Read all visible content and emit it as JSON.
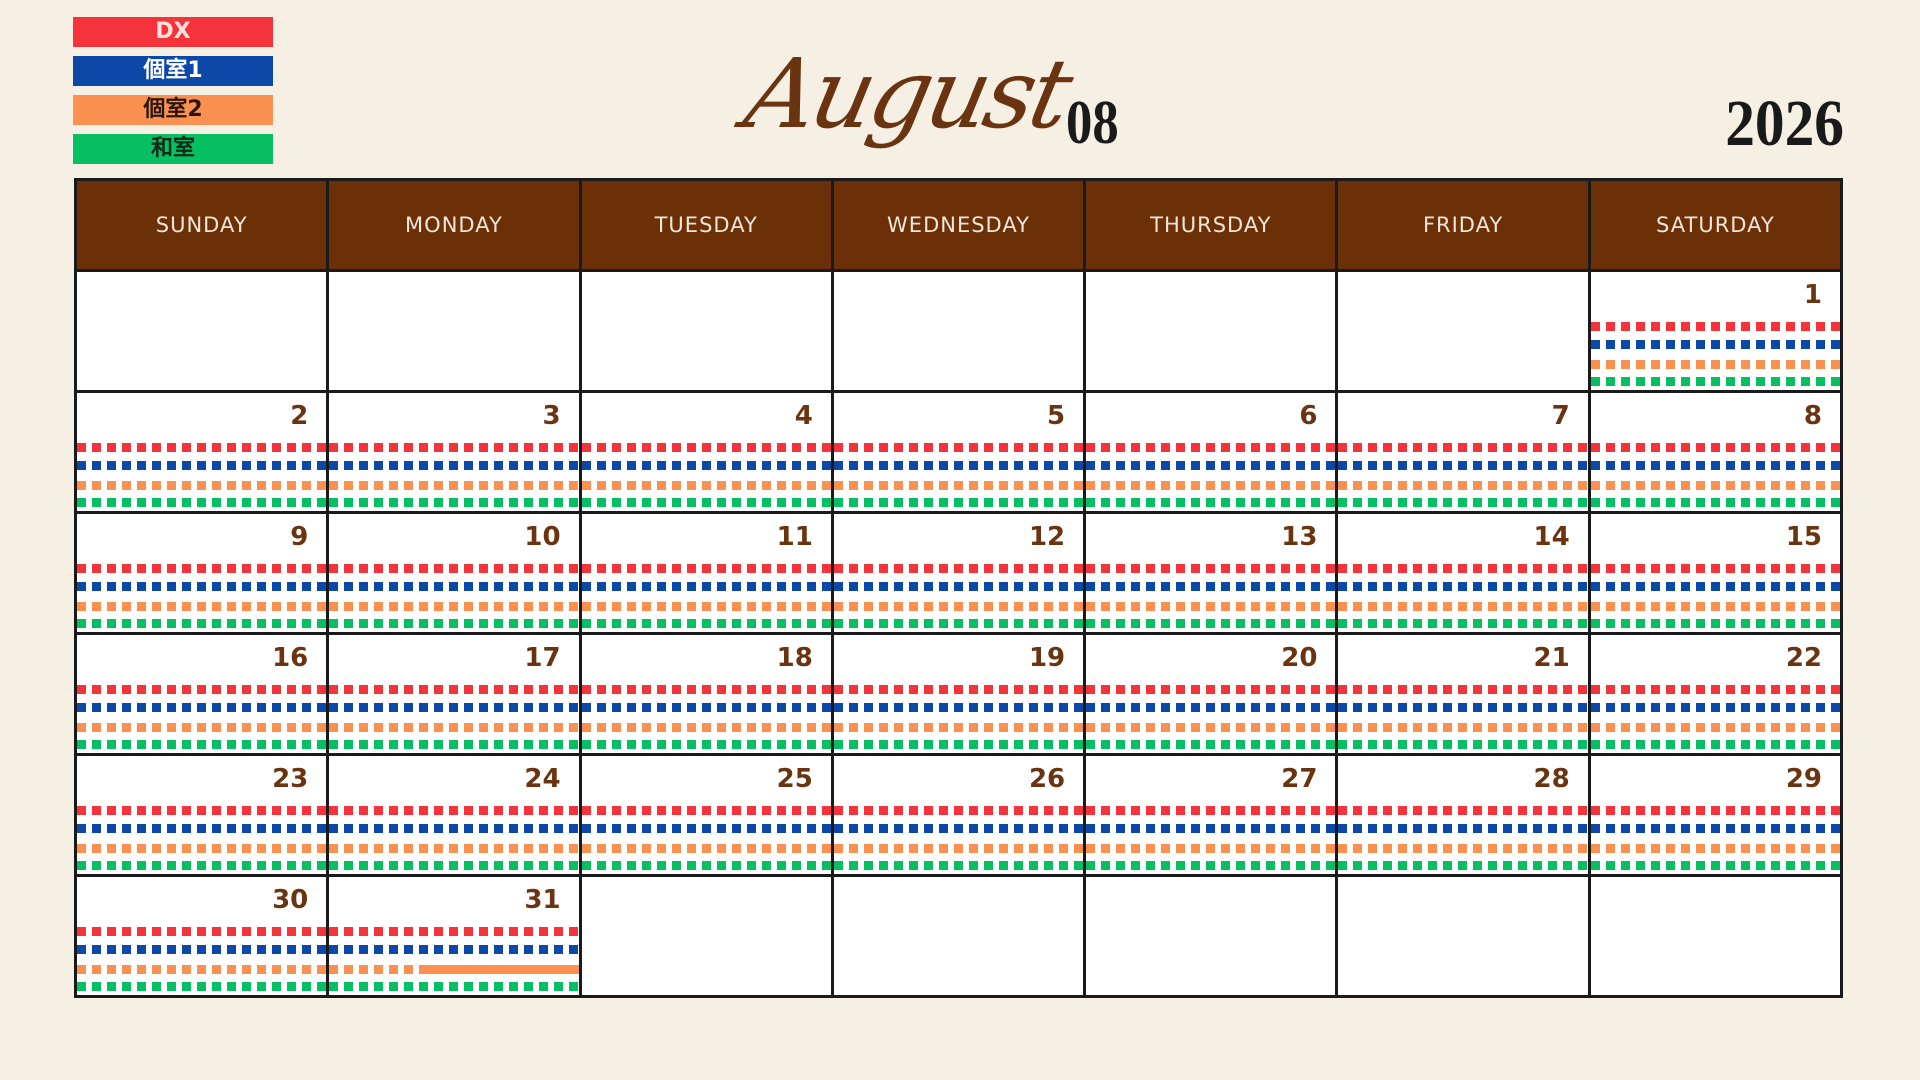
{
  "legend": [
    {
      "label": "DX",
      "bg": "#f5333b",
      "fg": "#fbe3dc"
    },
    {
      "label": "個室1",
      "bg": "#0b48a8",
      "fg": "#ffffff"
    },
    {
      "label": "個室2",
      "bg": "#fb9150",
      "fg": "#2a1508"
    },
    {
      "label": "和室",
      "bg": "#06bf62",
      "fg": "#0e2a16"
    }
  ],
  "title": {
    "month": "August",
    "month_number": "08",
    "year": "2026"
  },
  "weekdays": [
    "SUNDAY",
    "MONDAY",
    "TUESDAY",
    "WEDNESDAY",
    "THURSDAY",
    "FRIDAY",
    "SATURDAY"
  ],
  "calendar": {
    "first_weekday_index": 6,
    "days_in_month": 31,
    "booked_rows": [
      "DX",
      "個室1",
      "個室2",
      "和室"
    ],
    "partial_solid": [
      {
        "day": 31,
        "row": "個室2",
        "solid_fraction": 0.62
      }
    ]
  }
}
